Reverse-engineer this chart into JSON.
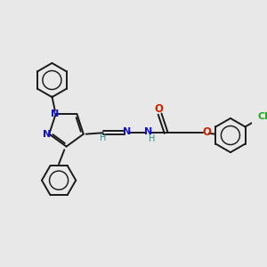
{
  "bg_color": "#e8e8e8",
  "bond_color": "#1a1a1a",
  "N_color": "#1111cc",
  "O_color": "#cc2200",
  "Cl_color": "#22aa22",
  "CH_color": "#2e8b8b",
  "bond_width": 1.4,
  "figsize": [
    3.0,
    3.0
  ],
  "dpi": 100,
  "xlim": [
    0,
    10
  ],
  "ylim": [
    0,
    10
  ]
}
